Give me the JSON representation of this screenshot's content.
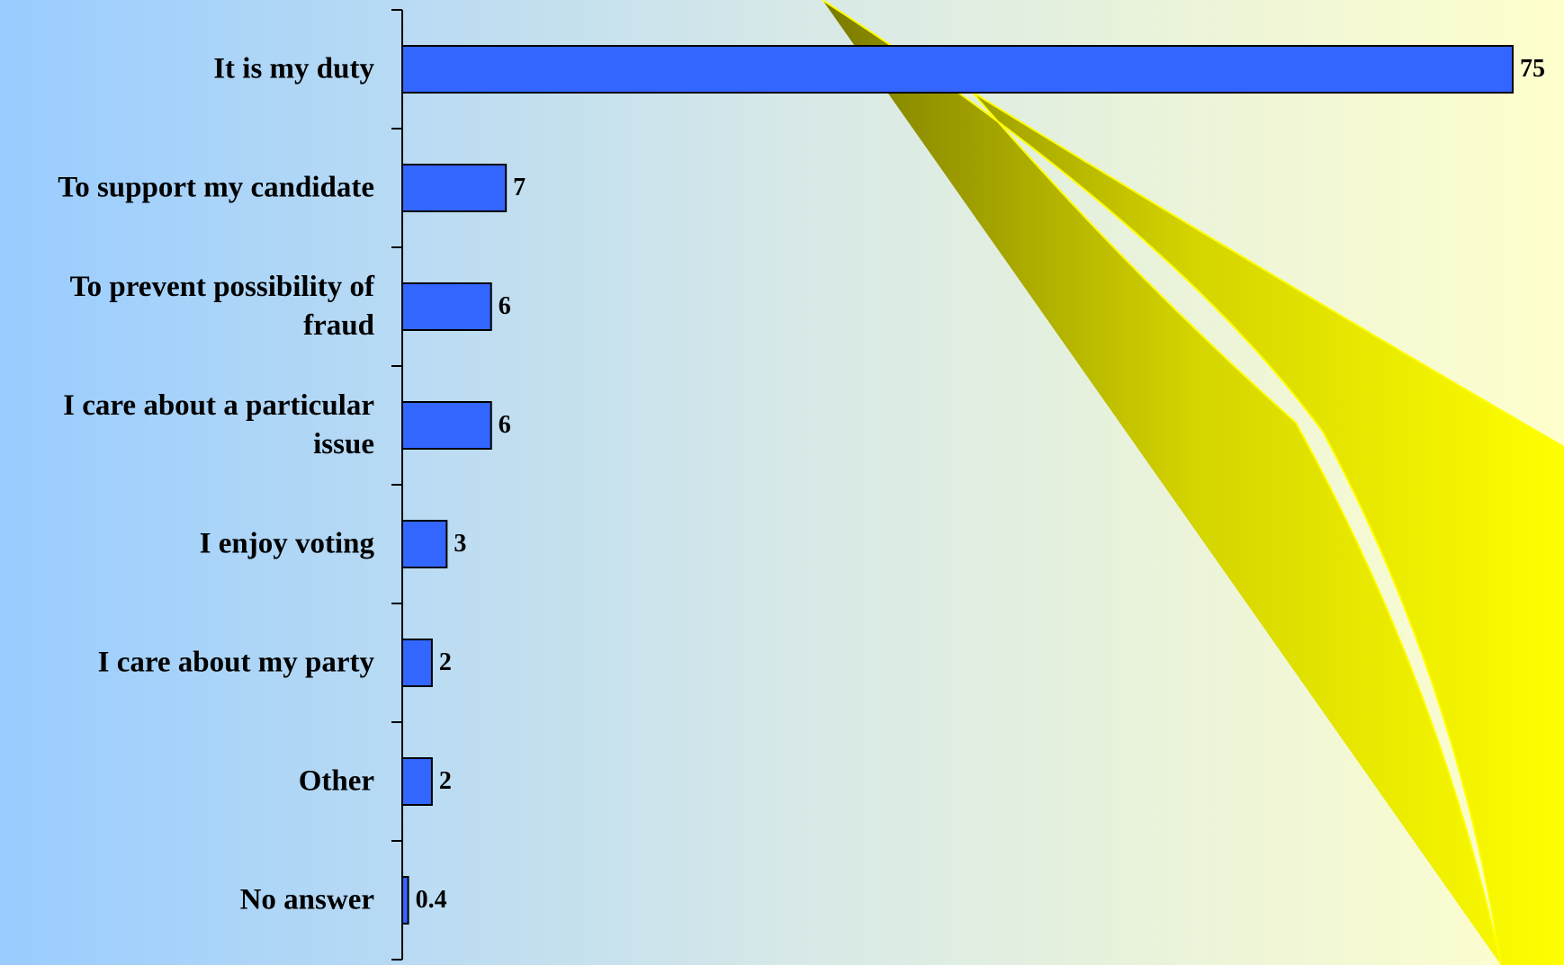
{
  "chart_data": {
    "type": "bar",
    "orientation": "horizontal",
    "categories": [
      "It is my duty",
      "To support my candidate",
      "To prevent possibility of fraud",
      "I care about a particular issue",
      "I enjoy voting",
      "I care about my party",
      "Other",
      "No answer"
    ],
    "values": [
      75,
      7,
      6,
      6,
      3,
      2,
      2,
      0.4
    ],
    "color": "#3366ff"
  }
}
